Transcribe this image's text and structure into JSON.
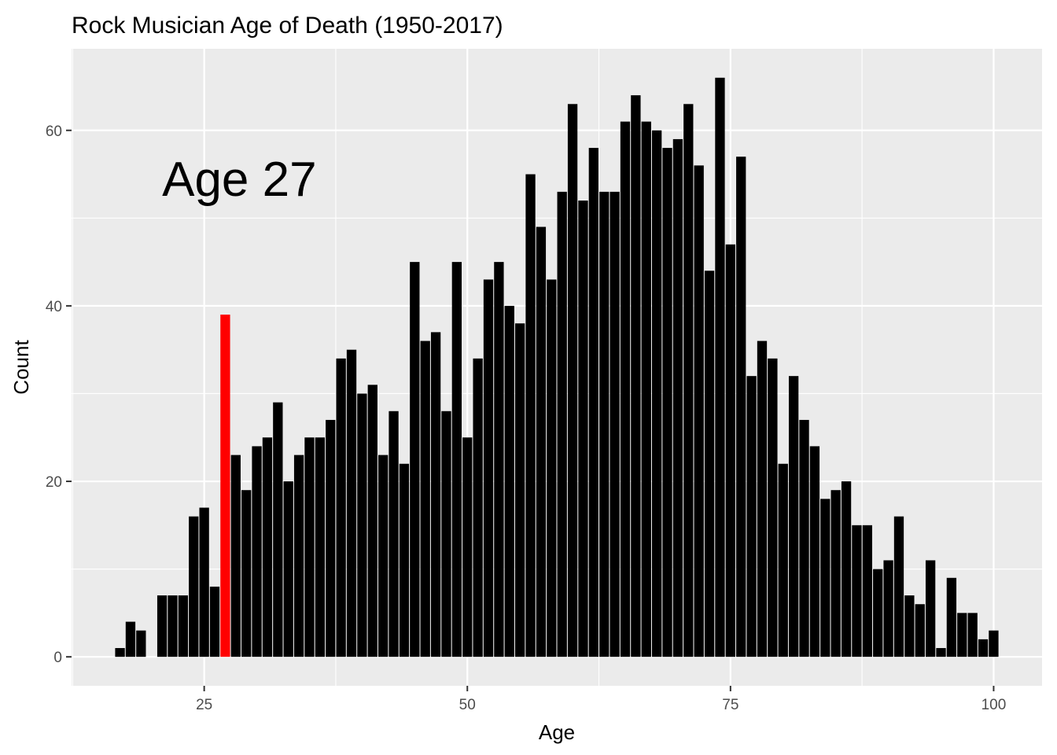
{
  "chart_data": {
    "type": "bar",
    "title": "Rock Musician Age of Death (1950-2017)",
    "xlabel": "Age",
    "ylabel": "Count",
    "xlim": [
      12.4,
      104.6
    ],
    "ylim": [
      -3.3,
      69.3
    ],
    "x_ticks": [
      25,
      50,
      75,
      100
    ],
    "y_ticks": [
      0,
      20,
      40,
      60
    ],
    "grid": true,
    "legend": "none",
    "annotation": {
      "text": "Age 27",
      "x": 21,
      "y": 54.5
    },
    "highlight": {
      "age": 27,
      "color": "#ff0000"
    },
    "bar_color": "#000000",
    "panel_background": "#ebebeb",
    "grid_color": "#ffffff",
    "x": [
      17,
      18,
      19,
      20,
      21,
      22,
      23,
      24,
      25,
      26,
      27,
      28,
      29,
      30,
      31,
      32,
      33,
      34,
      35,
      36,
      37,
      38,
      39,
      40,
      41,
      42,
      43,
      44,
      45,
      46,
      47,
      48,
      49,
      50,
      51,
      52,
      53,
      54,
      55,
      56,
      57,
      58,
      59,
      60,
      61,
      62,
      63,
      64,
      65,
      66,
      67,
      68,
      69,
      70,
      71,
      72,
      73,
      74,
      75,
      76,
      77,
      78,
      79,
      80,
      81,
      82,
      83,
      84,
      85,
      86,
      87,
      88,
      89,
      90,
      91,
      92,
      93,
      94,
      95,
      96,
      97,
      98,
      99,
      100
    ],
    "values": [
      1,
      4,
      3,
      0,
      7,
      7,
      7,
      16,
      17,
      8,
      39,
      23,
      19,
      24,
      25,
      29,
      20,
      23,
      25,
      25,
      27,
      34,
      35,
      30,
      31,
      23,
      28,
      22,
      45,
      36,
      37,
      28,
      45,
      25,
      34,
      43,
      45,
      40,
      38,
      55,
      49,
      43,
      53,
      63,
      52,
      58,
      53,
      53,
      61,
      64,
      61,
      60,
      58,
      59,
      63,
      56,
      44,
      66,
      47,
      57,
      32,
      36,
      34,
      22,
      32,
      27,
      24,
      18,
      19,
      20,
      15,
      15,
      10,
      11,
      16,
      7,
      6,
      11,
      1,
      9,
      5,
      5,
      2,
      3
    ]
  }
}
